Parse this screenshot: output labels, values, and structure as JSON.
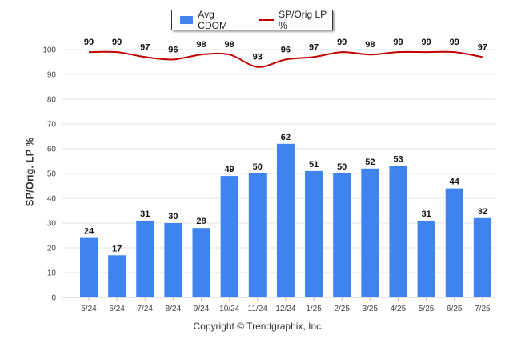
{
  "chart_data": {
    "type": "bar",
    "categories": [
      "5/24",
      "6/24",
      "7/24",
      "8/24",
      "9/24",
      "10/24",
      "11/24",
      "12/24",
      "1/25",
      "2/25",
      "3/25",
      "4/25",
      "5/25",
      "6/25",
      "7/25"
    ],
    "series": [
      {
        "name": "Avg CDOM",
        "type": "bar",
        "color": "#3f83f1",
        "values": [
          24,
          17,
          31,
          30,
          28,
          49,
          50,
          62,
          51,
          50,
          52,
          53,
          31,
          44,
          32
        ]
      },
      {
        "name": "SP/Orig LP %",
        "type": "line",
        "color": "#c00000",
        "values": [
          99,
          99,
          97,
          96,
          98,
          98,
          93,
          96,
          97,
          99,
          98,
          99,
          99,
          99,
          97
        ]
      }
    ],
    "ylabel": "SP/Orig. LP %",
    "ylim": [
      0,
      100
    ],
    "yticks": [
      0,
      10,
      20,
      30,
      40,
      50,
      60,
      70,
      80,
      90,
      100
    ],
    "grid": true,
    "legend_position": "top-center"
  },
  "footer": {
    "copyright": "Copyright © Trendgraphix, Inc."
  }
}
